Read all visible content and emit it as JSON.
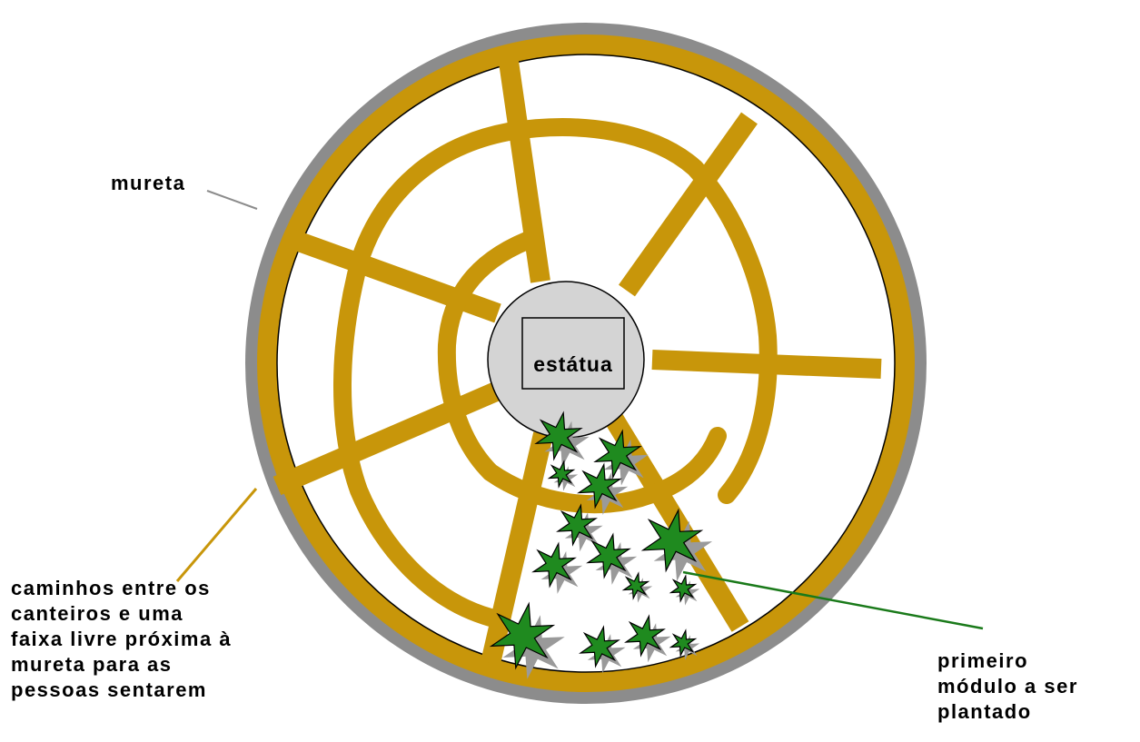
{
  "diagram": {
    "center_label": "estátua",
    "labels": {
      "wall": "mureta",
      "paths": [
        "caminhos entre os",
        "canteiros e uma",
        "faixa livre próxima à",
        "mureta para as",
        "pessoas sentarem"
      ],
      "module": [
        "primeiro",
        "módulo a ser",
        "plantado"
      ]
    },
    "colors": {
      "wall": "#8c8c8c",
      "path": "#c8960a",
      "statue": "#d4d4d4",
      "plant": "#1f8a1f",
      "plant_shadow": "#9a9a9a",
      "leader_line_wall": "#8c8c8c",
      "leader_line_paths": "#c8960a",
      "leader_line_module": "#1f8a1f"
    },
    "icons": [
      "plant-icon"
    ]
  }
}
